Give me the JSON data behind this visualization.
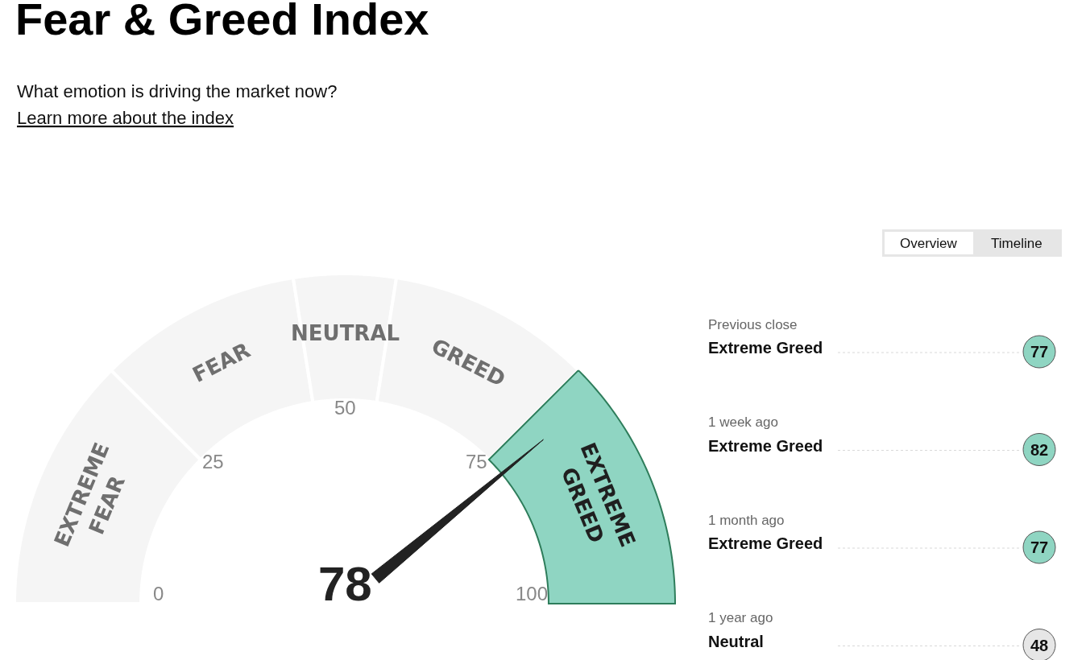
{
  "chart_data": [
    {
      "type": "donut",
      "title": "Fear & Greed Index",
      "subtitle": "What emotion is driving the market now?",
      "categories": [
        "EXTREME FEAR",
        "FEAR",
        "NEUTRAL",
        "GREED",
        "EXTREME GREED"
      ],
      "values": [
        25,
        20,
        10,
        20,
        25
      ],
      "colors": [
        "#f5f5f5",
        "#f5f5f5",
        "#f5f5f5",
        "#f5f5f5",
        "#8fd5c2"
      ],
      "needle": "EXTREME GREED",
      "annotations": [
        "Learn more about the index",
        "78",
        "0",
        "25",
        "50",
        "75",
        "100"
      ]
    },
    {
      "type": "other",
      "annotations": [
        "Overview",
        "Timeline",
        "Previous close",
        "Extreme Greed",
        "77",
        "1 week ago",
        "Extreme Greed",
        "82",
        "1 month ago",
        "Extreme Greed",
        "77",
        "1 year ago",
        "Neutral",
        "48"
      ],
      "colors": [
        "#8fd5c2",
        "#8fd5c2",
        "#8fd5c2",
        "#e6e6e6"
      ]
    }
  ]
}
